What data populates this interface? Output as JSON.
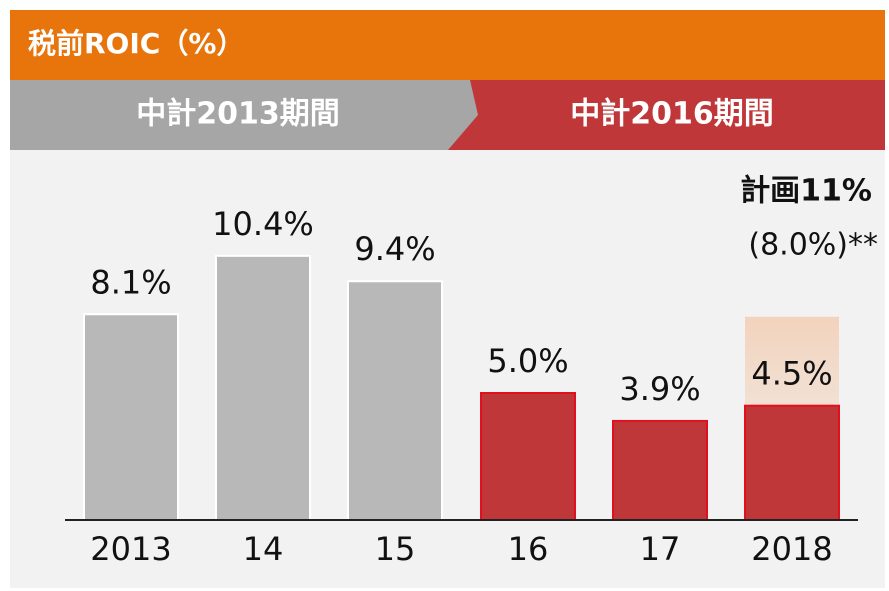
{
  "chart_data": {
    "type": "bar",
    "title": "税前ROIC（%）",
    "periods": [
      {
        "name": "中計2013期間",
        "color": "#a6a6a6"
      },
      {
        "name": "中計2016期間",
        "color": "#c0373a"
      }
    ],
    "categories": [
      "2013",
      "14",
      "15",
      "16",
      "17",
      "2018"
    ],
    "values": [
      8.1,
      10.4,
      9.4,
      5.0,
      3.9,
      4.5
    ],
    "value_labels": [
      "8.1%",
      "10.4%",
      "9.4%",
      "5.0%",
      "3.9%",
      "4.5%"
    ],
    "colors": [
      "#b8b8b8",
      "#b8b8b8",
      "#b8b8b8",
      "#c0373a",
      "#c0373a",
      "#c0373a"
    ],
    "plan": {
      "annotation": "計画11%",
      "value": 8.0,
      "label": "(8.0%)**"
    },
    "ylim": [
      0,
      20
    ]
  }
}
